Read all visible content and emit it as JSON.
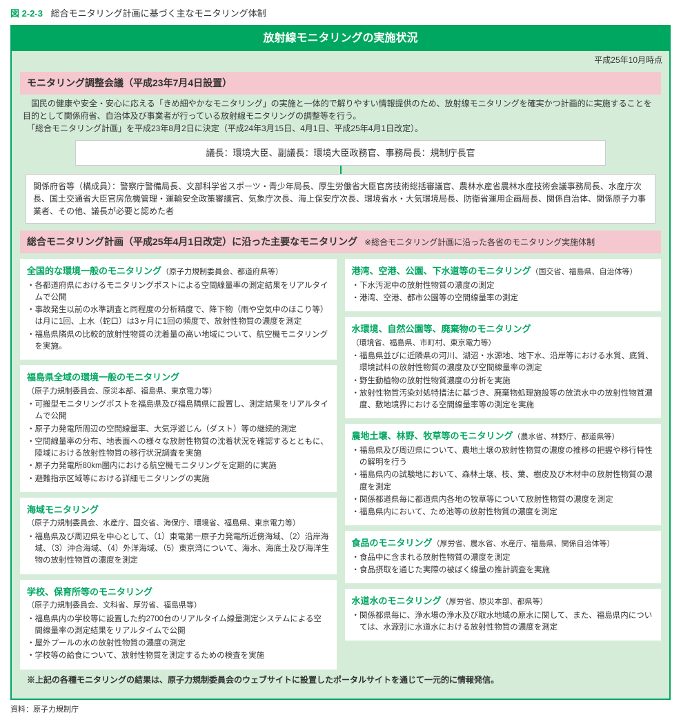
{
  "figure": {
    "num": "図 2-2-3",
    "title": "総合モニタリング計画に基づく主なモニタリング体制"
  },
  "banner": "放射線モニタリングの実施状況",
  "date_note": "平成25年10月時点",
  "council": {
    "header": "モニタリング調整会議（平成23年7月4日設置）",
    "desc": "　国民の健康や安全・安心に応える「きめ細やかなモニタリング」の実施と一体的で解りやすい情報提供のため、放射線モニタリングを確実かつ計画的に実施することを目的として関係府省、自治体及び事業者が行っている放射線モニタリングの調整等を行う。\n　「総合モニタリング計画」を平成23年8月2日に決定（平成24年3月15日、4月1日、平成25年4月1日改定）。",
    "chair_box": "議長：環境大臣、副議長：環境大臣政務官、事務局長：規制庁長官",
    "members": "関係府省等（構成員）：警察庁警備局長、文部科学省スポーツ・青少年局長、厚生労働省大臣官房技術総括審議官、農林水産省農林水産技術会議事務局長、水産庁次長、国土交通省大臣官房危機管理・運輸安全政策審議官、気象庁次長、海上保安庁次長、環境省水・大気環境局長、防衛省運用企画局長、関係自治体、関係原子力事業者、その他、議長が必要と認めた者"
  },
  "plan": {
    "header": "総合モニタリング計画（平成25年4月1日改定）に沿った主要なモニタリング",
    "header_sub": "※総合モニタリング計画に沿った各省のモニタリング実施体制",
    "left": [
      {
        "title": "全国的な環境一般のモニタリング",
        "org": "（原子力規制委員会、都道府県等）",
        "bullets": [
          "・各都道府県におけるモニタリングポストによる空間線量率の測定結果をリアルタイムで公開",
          "・事故発生以前の水準調査と同程度の分析精度で、降下物（雨や空気中のほこり等）は月に1回、上水（蛇口）は3ヶ月に1回の頻度で、放射性物質の濃度を測定",
          "・福島県隣県の比較的放射性物質の沈着量の高い地域について、航空機モニタリングを実施。"
        ]
      },
      {
        "title": "福島県全域の環境一般のモニタリング",
        "org": "（原子力規制委員会、原災本部、福島県、東京電力等）",
        "org_newline": true,
        "bullets": [
          "・可搬型モニタリングポストを福島県及び福島隣県に設置し、測定結果をリアルタイムで公開",
          "・原子力発電所周辺の空間線量率、大気浮遊じん（ダスト）等の継続的測定",
          "・空間線量率の分布、地表面への様々な放射性物質の沈着状況を確認するとともに、陸域における放射性物質の移行状況調査を実施",
          "・原子力発電所80km圏内における航空機モニタリングを定期的に実施",
          "・避難指示区域等における詳細モニタリングの実施"
        ]
      },
      {
        "title": "海域モニタリング",
        "org": "（原子力規制委員会、水産庁、国交省、海保庁、環境省、福島県、東京電力等）",
        "org_newline": true,
        "bullets": [
          "・福島県及び周辺県を中心として、（1）東電第一原子力発電所近傍海域、（2）沿岸海域、（3）沖合海域、（4）外洋海域、（5）東京湾について、海水、海底土及び海洋生物の放射性物質の濃度を測定"
        ]
      },
      {
        "title": "学校、保育所等のモニタリング",
        "org": "（原子力規制委員会、文科省、厚労省、福島県等）",
        "org_newline": true,
        "bullets": [
          "・福島県内の学校等に設置した約2700台のリアルタイム線量測定システムによる空間線量率の測定結果をリアルタイムで公開",
          "・屋外プールの水の放射性物質の濃度の測定",
          "・学校等の給食について、放射性物質を測定するための検査を実施"
        ]
      }
    ],
    "right": [
      {
        "title": "港湾、空港、公園、下水道等のモニタリング",
        "org": "（国交省、福島県、自治体等）",
        "bullets": [
          "・下水汚泥中の放射性物質の濃度の測定",
          "・港湾、空港、都市公園等の空間線量率の測定"
        ]
      },
      {
        "title": "水環境、自然公園等、廃棄物のモニタリング",
        "org": "（環境省、福島県、市町村、東京電力等）",
        "org_newline": true,
        "bullets": [
          "・福島県並びに近隣県の河川、湖沼・水源地、地下水、沿岸等における水質、底質、環境試料の放射性物質の濃度及び空間線量率の測定",
          "・野生動植物の放射性物質濃度の分析を実施",
          "・放射性物質汚染対処特措法に基づき、廃棄物処理施設等の放流水中の放射性物質濃度、敷地境界における空間線量率等の測定を実施"
        ]
      },
      {
        "title": "農地土壌、林野、牧草等のモニタリング",
        "org": "（農水省、林野庁、都道県等）",
        "bullets": [
          "・福島県及び周辺県について、農地土壌の放射性物質の濃度の推移の把握や移行特性の解明を行う",
          "・福島県内の試験地において、森林土壌、枝、葉、樹皮及び木材中の放射性物質の濃度を測定",
          "・関係都道県毎に都道県内各地の牧草等について放射性物質の濃度を測定",
          "・福島県内において、ため池等の放射性物質の濃度を測定"
        ]
      },
      {
        "title": "食品のモニタリング",
        "org": "（厚労省、農水省、水産庁、福島県、関係自治体等）",
        "bullets": [
          "・食品中に含まれる放射性物質の濃度を測定",
          "・食品摂取を通じた実際の被ばく線量の推計調査を実施"
        ]
      },
      {
        "title": "水道水のモニタリング",
        "org": "（厚労省、原災本部、都県等）",
        "bullets": [
          "・関係都県毎に、浄水場の浄水及び取水地域の原水に関して、また、福島県内については、水源別に水道水における放射性物質の濃度を測定"
        ]
      }
    ],
    "footnote": "※上記の各種モニタリングの結果は、原子力規制委員会のウェブサイトに設置したポータルサイトを通じて一元的に情報発信。"
  },
  "source": "資料：原子力規制庁"
}
